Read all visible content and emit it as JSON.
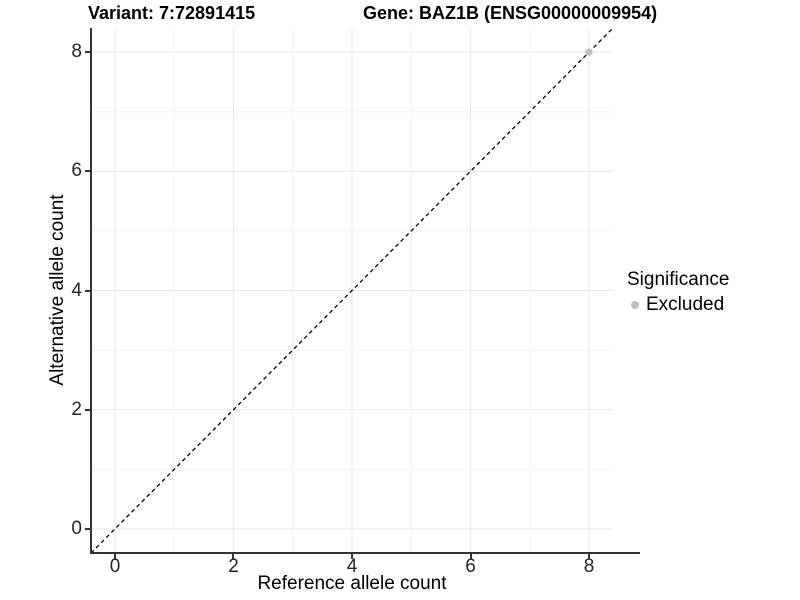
{
  "titles": {
    "variant": "Variant: 7:72891415",
    "gene": "Gene: BAZ1B (ENSG00000009954)"
  },
  "axes": {
    "x": {
      "label": "Reference allele count",
      "tick_labels": [
        "0",
        "2",
        "4",
        "6",
        "8"
      ],
      "tick_values": [
        0,
        2,
        4,
        6,
        8
      ],
      "minor_values": [
        1,
        3,
        5,
        7
      ]
    },
    "y": {
      "label": "Alternative allele count",
      "tick_labels": [
        "0",
        "2",
        "4",
        "6",
        "8"
      ],
      "tick_values": [
        0,
        2,
        4,
        6,
        8
      ],
      "minor_values": [
        1,
        3,
        5,
        7
      ]
    }
  },
  "legend": {
    "title": "Significance",
    "items": [
      {
        "label": "Excluded",
        "color": "#bebebe"
      }
    ]
  },
  "colors": {
    "axis_line": "#333333",
    "major_grid": "#e8e8e8",
    "minor_grid": "#f4f4f4",
    "dashed_line": "#000000",
    "point": "#bebebe",
    "tick_text": "#262626",
    "panel_background": "#ffffff"
  },
  "chart_data": {
    "type": "scatter",
    "title": "Variant: 7:72891415    Gene: BAZ1B (ENSG00000009954)",
    "xlabel": "Reference allele count",
    "ylabel": "Alternative allele count",
    "xlim": [
      -0.405,
      8.405
    ],
    "ylim": [
      -0.405,
      8.405
    ],
    "x_ticks": [
      0,
      2,
      4,
      6,
      8
    ],
    "y_ticks": [
      0,
      2,
      4,
      6,
      8
    ],
    "grid": "major+minor",
    "legend_position": "right",
    "series": [
      {
        "name": "Excluded",
        "color": "#bebebe",
        "points": [
          {
            "x": 8,
            "y": 8
          }
        ]
      }
    ],
    "reference_line": {
      "kind": "identity y=x",
      "style": "dashed",
      "color": "#000000",
      "from": [
        -0.405,
        -0.405
      ],
      "to": [
        8.405,
        8.405
      ]
    }
  }
}
